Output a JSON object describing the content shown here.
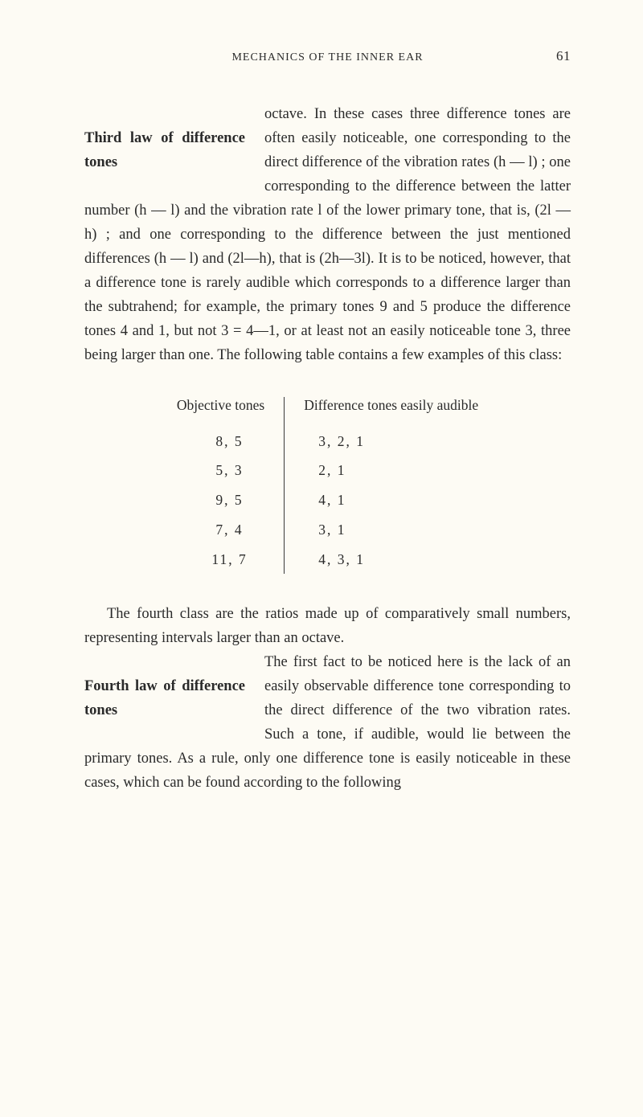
{
  "header": {
    "running_title": "MECHANICS OF THE INNER EAR",
    "page_number": "61"
  },
  "paragraph1": {
    "side_heading": "Third law of difference tones",
    "text": "octave. In these cases three difference tones are often easily noticeable, one corresponding to the direct difference of the vibration rates (h — l) ; one corresponding to the difference between the latter number (h — l) and the vibration rate l of the lower primary tone, that is, (2l — h) ; and one corresponding to the difference between the just mentioned differences (h — l) and (2l—h), that is (2h—3l). It is to be noticed, however, that a difference tone is rarely audible which corresponds to a difference larger than the subtrahend; for example, the primary tones 9 and 5 produce the difference tones 4 and 1, but not 3 = 4—1, or at least not an easily noticeable tone 3, three being larger than one. The following table contains a few examples of this class:"
  },
  "table": {
    "left_header": "Objective tones",
    "right_header": "Difference tones easily audible",
    "rows": [
      {
        "obj": "8,  5",
        "diff": "3,  2,  1"
      },
      {
        "obj": "5,  3",
        "diff": "2,  1"
      },
      {
        "obj": "9,  5",
        "diff": "4,  1"
      },
      {
        "obj": "7,  4",
        "diff": "3,  1"
      },
      {
        "obj": "11,  7",
        "diff": "4,  3,  1"
      }
    ]
  },
  "paragraph2": {
    "side_heading": "Fourth law of difference tones",
    "lead": "The fourth class are the ratios made up of comparatively small numbers, representing intervals larger than an octave.",
    "body": "The first fact to be noticed here is the lack of an easily observable difference tone corresponding to the direct difference of the two vibration rates. Such a tone, if audible, would lie between the primary tones. As a rule, only one difference tone is easily noticeable in these cases, which can be found according to the following"
  }
}
